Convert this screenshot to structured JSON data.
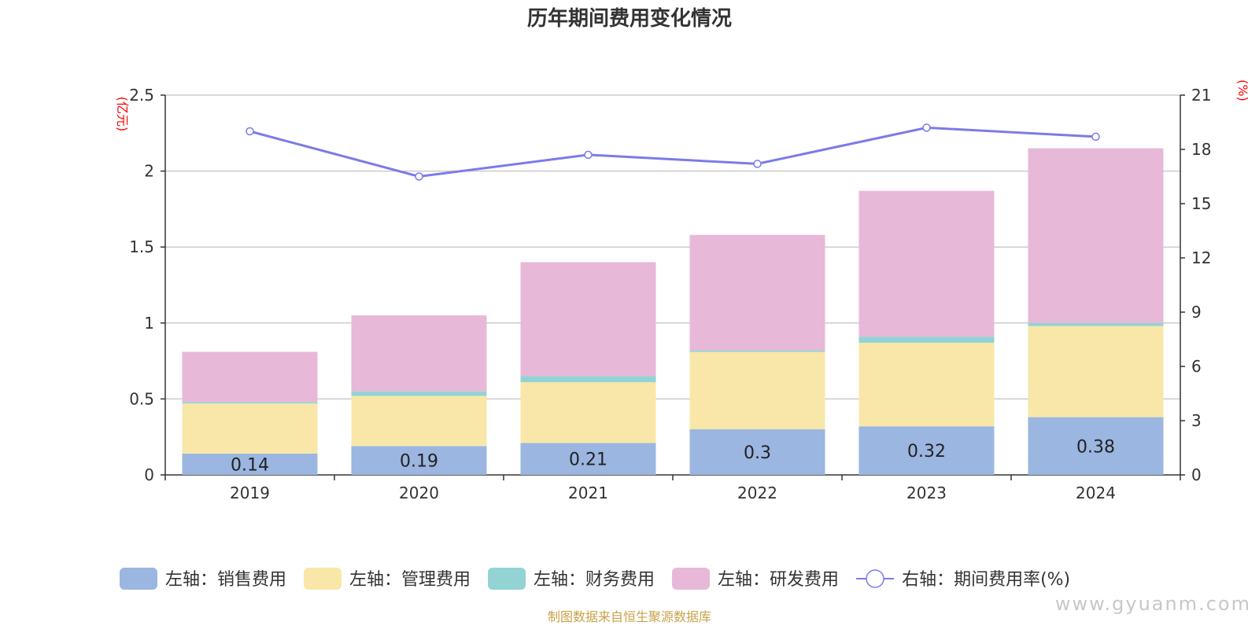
{
  "chart_data": {
    "type": "bar",
    "stacked": true,
    "title": "历年期间费用变化情况",
    "categories": [
      "2019",
      "2020",
      "2021",
      "2022",
      "2023",
      "2024"
    ],
    "y_left": {
      "unit": "(亿元)",
      "ylim": [
        0,
        2.5
      ],
      "ticks": [
        "0",
        "0.5",
        "1",
        "1.5",
        "2",
        "2.5"
      ]
    },
    "y_right": {
      "unit": "(%)",
      "ylim": [
        0,
        21
      ],
      "ticks": [
        "0",
        "3",
        "6",
        "9",
        "12",
        "15",
        "18",
        "21"
      ]
    },
    "grid": true,
    "legend_position": "bottom",
    "series": [
      {
        "name": "左轴：销售费用",
        "axis": "left",
        "type": "bar",
        "color": "#9bb6e0",
        "values": [
          0.14,
          0.19,
          0.21,
          0.3,
          0.32,
          0.38
        ],
        "labels": [
          "0.14",
          "0.19",
          "0.21",
          "0.3",
          "0.32",
          "0.38"
        ]
      },
      {
        "name": "左轴：管理费用",
        "axis": "left",
        "type": "bar",
        "color": "#f8e7a8",
        "values": [
          0.33,
          0.33,
          0.4,
          0.51,
          0.55,
          0.6
        ]
      },
      {
        "name": "左轴：财务费用",
        "axis": "left",
        "type": "bar",
        "color": "#93d3d3",
        "values": [
          0.01,
          0.03,
          0.04,
          0.01,
          0.04,
          0.02
        ]
      },
      {
        "name": "左轴：研发费用",
        "axis": "left",
        "type": "bar",
        "color": "#e8b8d8",
        "values": [
          0.33,
          0.5,
          0.75,
          0.76,
          0.96,
          1.15
        ]
      },
      {
        "name": "右轴：期间费用率(%)",
        "axis": "right",
        "type": "line",
        "color": "#7b7be8",
        "values": [
          19.0,
          16.5,
          17.7,
          17.2,
          19.2,
          18.7
        ]
      }
    ]
  },
  "footer": {
    "source": "制图数据来自恒生聚源数据库",
    "watermark": "www.gyuanm.com"
  }
}
